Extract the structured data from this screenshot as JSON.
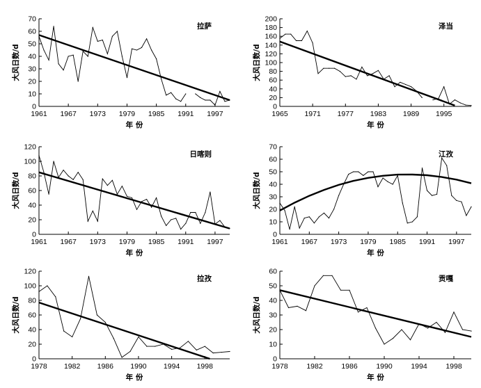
{
  "xlabel": "年 份",
  "ylabel": "大风日数/d",
  "chart_data": [
    {
      "type": "line",
      "title": "拉萨",
      "xlabel": "年 份",
      "ylabel": "大风日数/d",
      "xlim": [
        1961,
        2000
      ],
      "ylim": [
        0,
        70
      ],
      "xticks": [
        1961,
        1967,
        1973,
        1979,
        1985,
        1991,
        1997
      ],
      "yticks": [
        0,
        10,
        20,
        30,
        40,
        50,
        60,
        70
      ],
      "series": [
        {
          "name": "大风日数",
          "x": [
            1961,
            1962,
            1963,
            1964,
            1965,
            1966,
            1967,
            1968,
            1969,
            1970,
            1971,
            1972,
            1973,
            1974,
            1975,
            1976,
            1977,
            1978,
            1979,
            1980,
            1981,
            1982,
            1983,
            1984,
            1985,
            1986,
            1987,
            1988,
            1989,
            1990,
            1991,
            1992,
            1993,
            1994,
            1995,
            1996,
            1997,
            1998,
            1999,
            2000
          ],
          "y": [
            56,
            45,
            37,
            64,
            34,
            29,
            40,
            41,
            20,
            44,
            40,
            63,
            52,
            53,
            42,
            56,
            60,
            40,
            23,
            46,
            45,
            47,
            54,
            45,
            38,
            22,
            9,
            11,
            6,
            4,
            10,
            null,
            10,
            7,
            5,
            5,
            1,
            12,
            4,
            5
          ]
        },
        {
          "name": "线性趋势",
          "x": [
            1961,
            2000
          ],
          "y": [
            57,
            5
          ]
        }
      ]
    },
    {
      "type": "line",
      "title": "泽当",
      "xlabel": "年 份",
      "ylabel": "大风日数/d",
      "xlim": [
        1965,
        2000
      ],
      "ylim": [
        0,
        200
      ],
      "xticks": [
        1965,
        1971,
        1977,
        1983,
        1989,
        1995
      ],
      "yticks": [
        0,
        20,
        40,
        60,
        80,
        100,
        120,
        140,
        160,
        180,
        200
      ],
      "series": [
        {
          "name": "大风日数",
          "x": [
            1965,
            1966,
            1967,
            1968,
            1969,
            1970,
            1971,
            1972,
            1973,
            1974,
            1975,
            1976,
            1977,
            1978,
            1979,
            1980,
            1981,
            1982,
            1983,
            1984,
            1985,
            1986,
            1987,
            1988,
            1989,
            1990,
            1991,
            1992,
            1993,
            1994,
            1995,
            1996,
            1997,
            1998,
            1999,
            2000
          ],
          "y": [
            155,
            165,
            165,
            150,
            150,
            172,
            145,
            75,
            87,
            87,
            87,
            80,
            68,
            70,
            62,
            90,
            70,
            75,
            82,
            62,
            70,
            45,
            55,
            50,
            45,
            35,
            20,
            null,
            15,
            18,
            45,
            5,
            15,
            8,
            3,
            2
          ]
        },
        {
          "name": "线性趋势",
          "x": [
            1965,
            1997
          ],
          "y": [
            148,
            2
          ]
        }
      ]
    },
    {
      "type": "line",
      "title": "日喀则",
      "xlabel": "年 份",
      "ylabel": "大风日数/d",
      "xlim": [
        1961,
        2000
      ],
      "ylim": [
        0,
        120
      ],
      "xticks": [
        1961,
        1967,
        1973,
        1979,
        1985,
        1991,
        1997
      ],
      "yticks": [
        0,
        20,
        40,
        60,
        80,
        100,
        120
      ],
      "series": [
        {
          "name": "大风日数",
          "x": [
            1961,
            1962,
            1963,
            1964,
            1965,
            1966,
            1967,
            1968,
            1969,
            1970,
            1971,
            1972,
            1973,
            1974,
            1975,
            1976,
            1977,
            1978,
            1979,
            1980,
            1981,
            1982,
            1983,
            1984,
            1985,
            1986,
            1987,
            1988,
            1989,
            1990,
            1991,
            1992,
            1993,
            1994,
            1995,
            1996,
            1997,
            1998,
            1999,
            2000
          ],
          "y": [
            108,
            85,
            55,
            100,
            78,
            88,
            80,
            75,
            85,
            75,
            18,
            32,
            18,
            76,
            67,
            74,
            55,
            66,
            52,
            50,
            34,
            45,
            48,
            37,
            50,
            25,
            12,
            20,
            22,
            7,
            15,
            30,
            30,
            15,
            30,
            58,
            14,
            19,
            10,
            8
          ]
        },
        {
          "name": "线性趋势",
          "x": [
            1961,
            2000
          ],
          "y": [
            85,
            8
          ]
        }
      ]
    },
    {
      "type": "line",
      "title": "江孜",
      "xlabel": "年 份",
      "ylabel": "大风日数/d",
      "xlim": [
        1961,
        2000
      ],
      "ylim": [
        0,
        70
      ],
      "xticks": [
        1961,
        1967,
        1973,
        1979,
        1985,
        1991,
        1997
      ],
      "yticks": [
        0,
        10,
        20,
        30,
        40,
        50,
        60,
        70
      ],
      "series": [
        {
          "name": "大风日数",
          "x": [
            1961,
            1962,
            1963,
            1964,
            1965,
            1966,
            1967,
            1968,
            1969,
            1970,
            1971,
            1972,
            1973,
            1974,
            1975,
            1976,
            1977,
            1978,
            1979,
            1980,
            1981,
            1982,
            1983,
            1984,
            1985,
            1986,
            1987,
            1988,
            1989,
            1990,
            1991,
            1992,
            1993,
            1994,
            1995,
            1996,
            1997,
            1998,
            1999,
            2000
          ],
          "y": [
            25,
            19,
            4,
            22,
            5,
            13,
            14,
            9,
            14,
            17,
            13,
            20,
            31,
            40,
            48,
            50,
            50,
            47,
            50,
            50,
            38,
            45,
            42,
            40,
            47,
            25,
            9,
            10,
            14,
            53,
            35,
            31,
            32,
            61,
            55,
            31,
            27,
            26,
            15,
            22
          ]
        },
        {
          "name": "二次趋势",
          "type": "curve",
          "x": [
            1961,
            1964,
            1967,
            1970,
            1973,
            1976,
            1979,
            1982,
            1985,
            1988,
            1991,
            1994,
            1997,
            2000
          ],
          "y": [
            19,
            25.3,
            30.8,
            35.5,
            39.5,
            42.7,
            45.1,
            46.8,
            47.7,
            47.8,
            47.2,
            45.8,
            43.7,
            40.8
          ]
        }
      ]
    },
    {
      "type": "line",
      "title": "拉孜",
      "xlabel": "年 份",
      "ylabel": "大风日数/d",
      "xlim": [
        1978,
        2001
      ],
      "ylim": [
        0,
        120
      ],
      "xticks": [
        1978,
        1982,
        1986,
        1990,
        1994,
        1998
      ],
      "yticks": [
        0,
        20,
        40,
        60,
        80,
        100,
        120
      ],
      "series": [
        {
          "name": "大风日数",
          "x": [
            1978,
            1979,
            1980,
            1981,
            1982,
            1983,
            1984,
            1985,
            1986,
            1987,
            1988,
            1989,
            1990,
            1991,
            1992,
            1993,
            1994,
            1995,
            1996,
            1997,
            1998,
            1999,
            2000,
            2001
          ],
          "y": [
            92,
            100,
            85,
            38,
            30,
            55,
            113,
            60,
            50,
            28,
            2,
            10,
            30,
            17,
            17,
            20,
            13,
            15,
            24,
            12,
            17,
            8,
            9,
            10
          ]
        },
        {
          "name": "线性趋势",
          "x": [
            1978,
            1998.6
          ],
          "y": [
            77,
            0
          ]
        }
      ]
    },
    {
      "type": "line",
      "title": "贡嘎",
      "xlabel": "年 份",
      "ylabel": "大风日数/d",
      "xlim": [
        1978,
        2000
      ],
      "ylim": [
        0,
        60
      ],
      "xticks": [
        1978,
        1982,
        1986,
        1990,
        1994,
        1998
      ],
      "yticks": [
        0,
        10,
        20,
        30,
        40,
        50,
        60
      ],
      "series": [
        {
          "name": "大风日数",
          "x": [
            1978,
            1979,
            1980,
            1981,
            1982,
            1983,
            1984,
            1985,
            1986,
            1987,
            1988,
            1989,
            1990,
            1991,
            1992,
            1993,
            1994,
            1995,
            1996,
            1997,
            1998,
            1999,
            2000
          ],
          "y": [
            47,
            35,
            36,
            33,
            50,
            57,
            57,
            47,
            47,
            32,
            35,
            21,
            10,
            14,
            20,
            13,
            24,
            21,
            25,
            18,
            32,
            20,
            19
          ]
        },
        {
          "name": "线性趋势",
          "x": [
            1978,
            2000
          ],
          "y": [
            47,
            15
          ]
        }
      ]
    }
  ]
}
